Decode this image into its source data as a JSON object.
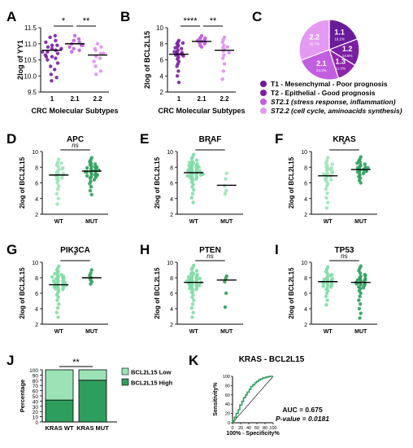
{
  "chart_data": [
    {
      "panel": "A",
      "type": "scatter",
      "categories": [
        "1",
        "2.1",
        "2.2"
      ],
      "xlabel": "CRC Molecular Subtypes",
      "ylabel": "2log of YY1",
      "ylim": [
        9.5,
        11.5
      ],
      "yticks": [
        "9.5",
        "10.0",
        "10.5",
        "11.0",
        "11.5"
      ],
      "series_colors": [
        "#7a1fa2",
        "#c05ce0",
        "#e08ef0"
      ],
      "groups": [
        [
          10.95,
          11.1,
          11.2,
          11.25,
          10.9,
          10.85,
          10.8,
          10.75,
          10.7,
          10.65,
          10.6,
          10.55,
          10.5,
          10.4,
          10.3,
          10.2,
          10.05,
          9.95,
          9.85,
          10.85,
          10.95,
          11.05,
          10.75,
          10.6
        ],
        [
          11.25,
          11.1,
          11.05,
          11.0,
          10.95,
          10.9,
          10.85,
          10.8,
          10.75,
          11.15,
          10.95
        ],
        [
          11.0,
          10.9,
          10.8,
          10.7,
          10.6,
          10.55,
          10.45,
          10.3,
          10.15,
          10.05,
          10.85,
          10.7
        ]
      ],
      "means": [
        10.8,
        11.0,
        10.65
      ],
      "significance": [
        {
          "from": 0,
          "to": 1,
          "label": "*"
        },
        {
          "from": 1,
          "to": 2,
          "label": "**"
        }
      ]
    },
    {
      "panel": "B",
      "type": "scatter",
      "categories": [
        "1",
        "2.1",
        "2.2"
      ],
      "xlabel": "CRC Molecular Subtypes",
      "ylabel": "2log of BCL2L15",
      "ylim": [
        2,
        10
      ],
      "yticks": [
        "2",
        "4",
        "6",
        "8",
        "10"
      ],
      "series_colors": [
        "#7a1fa2",
        "#c05ce0",
        "#e08ef0"
      ],
      "groups": [
        [
          8.4,
          8.2,
          8.0,
          7.8,
          7.6,
          7.4,
          7.2,
          7.0,
          6.9,
          6.8,
          6.7,
          6.6,
          6.5,
          6.3,
          6.1,
          5.8,
          5.5,
          5.2,
          4.6,
          4.0,
          3.2,
          7.5,
          7.0,
          6.6,
          8.1
        ],
        [
          9.0,
          8.8,
          8.6,
          8.5,
          8.4,
          8.3,
          8.2,
          8.1,
          8.0,
          7.8,
          7.6,
          8.7
        ],
        [
          8.8,
          8.5,
          8.2,
          7.8,
          7.5,
          7.3,
          7.1,
          6.9,
          6.6,
          6.2,
          5.5,
          4.6,
          3.6,
          7.6
        ]
      ],
      "means": [
        6.7,
        8.3,
        7.2
      ],
      "significance": [
        {
          "from": 0,
          "to": 1,
          "label": "****"
        },
        {
          "from": 1,
          "to": 2,
          "label": "**"
        }
      ]
    },
    {
      "panel": "C",
      "type": "pie",
      "slices": [
        {
          "label": "1.1",
          "value": 19.2,
          "pct": "19.2%",
          "color": "#6a1b9a"
        },
        {
          "label": "1.2",
          "value": 14.5,
          "pct": "14.5%",
          "color": "#7b1fa2"
        },
        {
          "label": "1.3",
          "value": 11.3,
          "pct": "11.3%",
          "color": "#8e24aa"
        },
        {
          "label": "2.1",
          "value": 24.3,
          "pct": "24.3%",
          "color": "#c25ee0"
        },
        {
          "label": "2.2",
          "value": 30.7,
          "pct": "30.7%",
          "color": "#e49af2"
        }
      ],
      "legend": [
        {
          "text": "T1 - Mesenchymal  - Poor prognosis",
          "color": "#6a1b9a",
          "italic": false
        },
        {
          "text": "T2 - Epithelial  - Good prognosis",
          "color": "#7b1fa2",
          "italic": false
        },
        {
          "text": "ST2.1 (stress response,  inflammation)",
          "color": "#c25ee0",
          "italic": true
        },
        {
          "text": "ST2.2 (cell cycle, aminoacids  synthesis)",
          "color": "#e49af2",
          "italic": true
        }
      ]
    },
    {
      "panel": "D",
      "type": "scatter",
      "title": "APC",
      "categories": [
        "WT",
        "MUT"
      ],
      "ylabel": "2log of BCL2L15",
      "ylim": [
        2,
        10
      ],
      "yticks": [
        "2",
        "4",
        "6",
        "8",
        "10"
      ],
      "series_colors": [
        "#9be3b6",
        "#2e9e5c"
      ],
      "groups": [
        [
          9.0,
          8.6,
          8.3,
          8.1,
          7.9,
          7.7,
          7.5,
          7.3,
          7.1,
          7.0,
          6.9,
          6.7,
          6.5,
          6.3,
          6.0,
          5.6,
          5.2,
          4.6,
          4.0,
          3.3,
          8.5,
          7.8,
          7.2,
          6.6
        ],
        [
          9.2,
          8.9,
          8.7,
          8.5,
          8.3,
          8.1,
          8.0,
          7.9,
          7.8,
          7.7,
          7.6,
          7.5,
          7.4,
          7.3,
          7.2,
          7.1,
          7.0,
          6.9,
          6.8,
          6.6,
          6.4,
          6.2,
          5.9,
          5.5,
          5.0,
          4.5,
          8.4,
          7.6,
          7.0,
          6.7,
          8.0,
          7.4
        ]
      ],
      "means": [
        7.0,
        7.5
      ],
      "significance": [
        {
          "from": 0,
          "to": 1,
          "label": "ns"
        }
      ]
    },
    {
      "panel": "E",
      "type": "scatter",
      "title": "BRAF",
      "categories": [
        "WT",
        "MUT"
      ],
      "ylabel": "2log of BCL2L15",
      "ylim": [
        2,
        10
      ],
      "yticks": [
        "2",
        "4",
        "6",
        "8",
        "10"
      ],
      "series_colors": [
        "#7fdca4",
        "#9be3b6"
      ],
      "groups": [
        [
          9.6,
          9.3,
          9.1,
          8.9,
          8.7,
          8.5,
          8.4,
          8.3,
          8.2,
          8.1,
          8.0,
          7.9,
          7.8,
          7.7,
          7.6,
          7.5,
          7.4,
          7.3,
          7.2,
          7.1,
          7.0,
          6.9,
          6.8,
          6.7,
          6.6,
          6.5,
          6.3,
          6.1,
          5.8,
          5.5,
          5.1,
          4.6,
          4.1,
          3.5,
          8.6,
          8.0,
          7.5,
          7.0,
          6.6,
          7.8,
          7.3,
          6.9,
          8.2,
          7.6,
          7.1
        ],
        [
          7.2,
          6.5,
          5.6,
          5.0,
          4.6
        ]
      ],
      "means": [
        7.3,
        5.7
      ],
      "significance": [
        {
          "from": 0,
          "to": 1,
          "label": "*"
        }
      ]
    },
    {
      "panel": "F",
      "type": "scatter",
      "title": "KRAS",
      "categories": [
        "WT",
        "MUT"
      ],
      "ylabel": "2log of BCL2L15",
      "ylim": [
        2,
        10
      ],
      "yticks": [
        "2",
        "4",
        "6",
        "8",
        "10"
      ],
      "series_colors": [
        "#9be3b6",
        "#2e9e5c"
      ],
      "groups": [
        [
          9.2,
          8.8,
          8.5,
          8.2,
          8.0,
          7.8,
          7.6,
          7.4,
          7.2,
          7.0,
          6.9,
          6.8,
          6.6,
          6.4,
          6.2,
          5.9,
          5.6,
          5.2,
          4.7,
          4.1,
          3.5,
          2.8,
          8.4,
          7.7,
          7.1,
          6.5,
          7.9,
          7.3
        ],
        [
          9.3,
          9.0,
          8.8,
          8.6,
          8.4,
          8.2,
          8.1,
          8.0,
          7.9,
          7.8,
          7.7,
          7.6,
          7.5,
          7.4,
          7.3,
          7.2,
          7.0,
          6.8,
          6.6,
          6.3,
          6.0,
          8.5,
          7.9,
          7.5
        ]
      ],
      "means": [
        6.9,
        7.7
      ],
      "significance": [
        {
          "from": 0,
          "to": 1,
          "label": "*"
        }
      ]
    },
    {
      "panel": "G",
      "type": "scatter",
      "title": "PIK3CA",
      "categories": [
        "WT",
        "MUT"
      ],
      "ylabel": "2log of BCL2L15",
      "ylim": [
        2,
        10
      ],
      "yticks": [
        "2",
        "4",
        "6",
        "8",
        "10"
      ],
      "series_colors": [
        "#7fdca4",
        "#2e9e5c"
      ],
      "groups": [
        [
          9.5,
          9.2,
          9.0,
          8.8,
          8.6,
          8.4,
          8.3,
          8.2,
          8.1,
          8.0,
          7.9,
          7.8,
          7.7,
          7.6,
          7.5,
          7.4,
          7.3,
          7.2,
          7.1,
          7.0,
          6.9,
          6.8,
          6.7,
          6.6,
          6.5,
          6.3,
          6.1,
          5.8,
          5.5,
          5.1,
          4.6,
          4.1,
          3.5,
          2.9,
          8.5,
          7.9,
          7.4,
          7.0,
          6.6,
          8.1,
          7.6,
          7.2,
          6.8
        ],
        [
          9.0,
          8.6,
          8.3,
          8.0,
          7.8,
          7.5,
          7.2
        ]
      ],
      "means": [
        7.1,
        8.0
      ],
      "significance": [
        {
          "from": 0,
          "to": 1,
          "label": "*"
        }
      ]
    },
    {
      "panel": "H",
      "type": "scatter",
      "title": "PTEN",
      "categories": [
        "WT",
        "MUT"
      ],
      "ylabel": "2log of BCL2L15",
      "ylim": [
        2,
        10
      ],
      "yticks": [
        "2",
        "4",
        "6",
        "8",
        "10"
      ],
      "series_colors": [
        "#7fdca4",
        "#2e9e5c"
      ],
      "groups": [
        [
          9.6,
          9.3,
          9.1,
          8.9,
          8.7,
          8.5,
          8.4,
          8.3,
          8.2,
          8.1,
          8.0,
          7.9,
          7.8,
          7.7,
          7.6,
          7.5,
          7.4,
          7.3,
          7.2,
          7.1,
          7.0,
          6.9,
          6.8,
          6.7,
          6.6,
          6.5,
          6.3,
          6.1,
          5.8,
          5.5,
          5.1,
          4.6,
          4.1,
          3.5,
          2.9,
          8.5,
          7.9,
          7.4,
          7.0,
          6.6,
          8.1,
          7.6,
          7.2,
          6.8,
          7.8
        ],
        [
          8.2,
          7.9,
          7.5,
          6.0,
          4.2
        ]
      ],
      "means": [
        7.4,
        7.7
      ],
      "significance": [
        {
          "from": 0,
          "to": 1,
          "label": "ns"
        }
      ]
    },
    {
      "panel": "I",
      "type": "scatter",
      "title": "TP53",
      "categories": [
        "WT",
        "MUT"
      ],
      "ylabel": "2log of BCL2L15",
      "ylim": [
        2,
        10
      ],
      "yticks": [
        "2",
        "4",
        "6",
        "8",
        "10"
      ],
      "series_colors": [
        "#7fdca4",
        "#2e9e5c"
      ],
      "groups": [
        [
          9.4,
          9.1,
          8.8,
          8.6,
          8.4,
          8.2,
          8.0,
          7.9,
          7.8,
          7.7,
          7.6,
          7.5,
          7.4,
          7.3,
          7.2,
          7.1,
          7.0,
          6.9,
          6.7,
          6.5,
          6.3,
          6.0,
          5.6,
          5.1,
          4.5,
          8.3,
          7.8,
          7.3,
          6.8
        ],
        [
          9.5,
          9.2,
          8.9,
          8.6,
          8.4,
          8.2,
          8.0,
          7.9,
          7.8,
          7.7,
          7.6,
          7.5,
          7.4,
          7.3,
          7.2,
          7.1,
          7.0,
          6.8,
          6.6,
          6.3,
          6.0,
          5.6,
          5.1,
          4.6,
          4.0,
          3.4,
          2.8,
          8.3,
          7.7,
          7.2,
          6.7
        ]
      ],
      "means": [
        7.5,
        7.4
      ],
      "significance": [
        {
          "from": 0,
          "to": 1,
          "label": "ns"
        }
      ]
    },
    {
      "panel": "J",
      "type": "bar",
      "stacked": true,
      "categories": [
        "KRAS WT",
        "KRAS MUT"
      ],
      "ylabel": "Percentage",
      "ylim": [
        0,
        100
      ],
      "yticks": [
        "0",
        "10",
        "20",
        "30",
        "40",
        "50",
        "60",
        "70",
        "80",
        "90",
        "100"
      ],
      "series": [
        {
          "name": "BCL2L15 High",
          "values": [
            42,
            80
          ],
          "color": "#2e9e5c"
        },
        {
          "name": "BCL2L15 Low",
          "values": [
            58,
            20
          ],
          "color": "#9be3b6"
        }
      ],
      "legend": [
        "BCL2L15 Low",
        "BCL2L15 High"
      ],
      "significance": [
        {
          "from": 0,
          "to": 1,
          "label": "**"
        }
      ]
    },
    {
      "panel": "K",
      "type": "line",
      "title": "KRAS - BCL2L15",
      "xlabel": "100% - Specificity%",
      "ylabel": "Sensitivity%",
      "xlim": [
        0,
        100
      ],
      "ylim": [
        0,
        100
      ],
      "xticks": [
        "0",
        "20",
        "40",
        "60",
        "80",
        "100"
      ],
      "yticks": [
        "0",
        "20",
        "40",
        "60",
        "80",
        "100"
      ],
      "series": [
        {
          "x": [
            0,
            0,
            5,
            5,
            9,
            9,
            14,
            14,
            18,
            18,
            23,
            23,
            27,
            27,
            32,
            32,
            36,
            36,
            41,
            41,
            45,
            45,
            50,
            50,
            55,
            55,
            59,
            59,
            64,
            64,
            68,
            68,
            73,
            73,
            77,
            77,
            82,
            82,
            86,
            86,
            91,
            91,
            95,
            95,
            100
          ],
          "y": [
            0,
            4,
            4,
            12,
            12,
            20,
            20,
            28,
            28,
            38,
            38,
            46,
            46,
            54,
            54,
            60,
            60,
            66,
            66,
            72,
            72,
            78,
            78,
            82,
            82,
            86,
            86,
            89,
            89,
            92,
            92,
            94,
            94,
            96,
            96,
            97,
            97,
            98,
            98,
            99,
            99,
            100,
            100,
            100,
            100
          ],
          "color": "#2e9e5c"
        }
      ],
      "annotations": [
        "AUC = 0.675",
        "P-value = 0.0181"
      ]
    }
  ]
}
